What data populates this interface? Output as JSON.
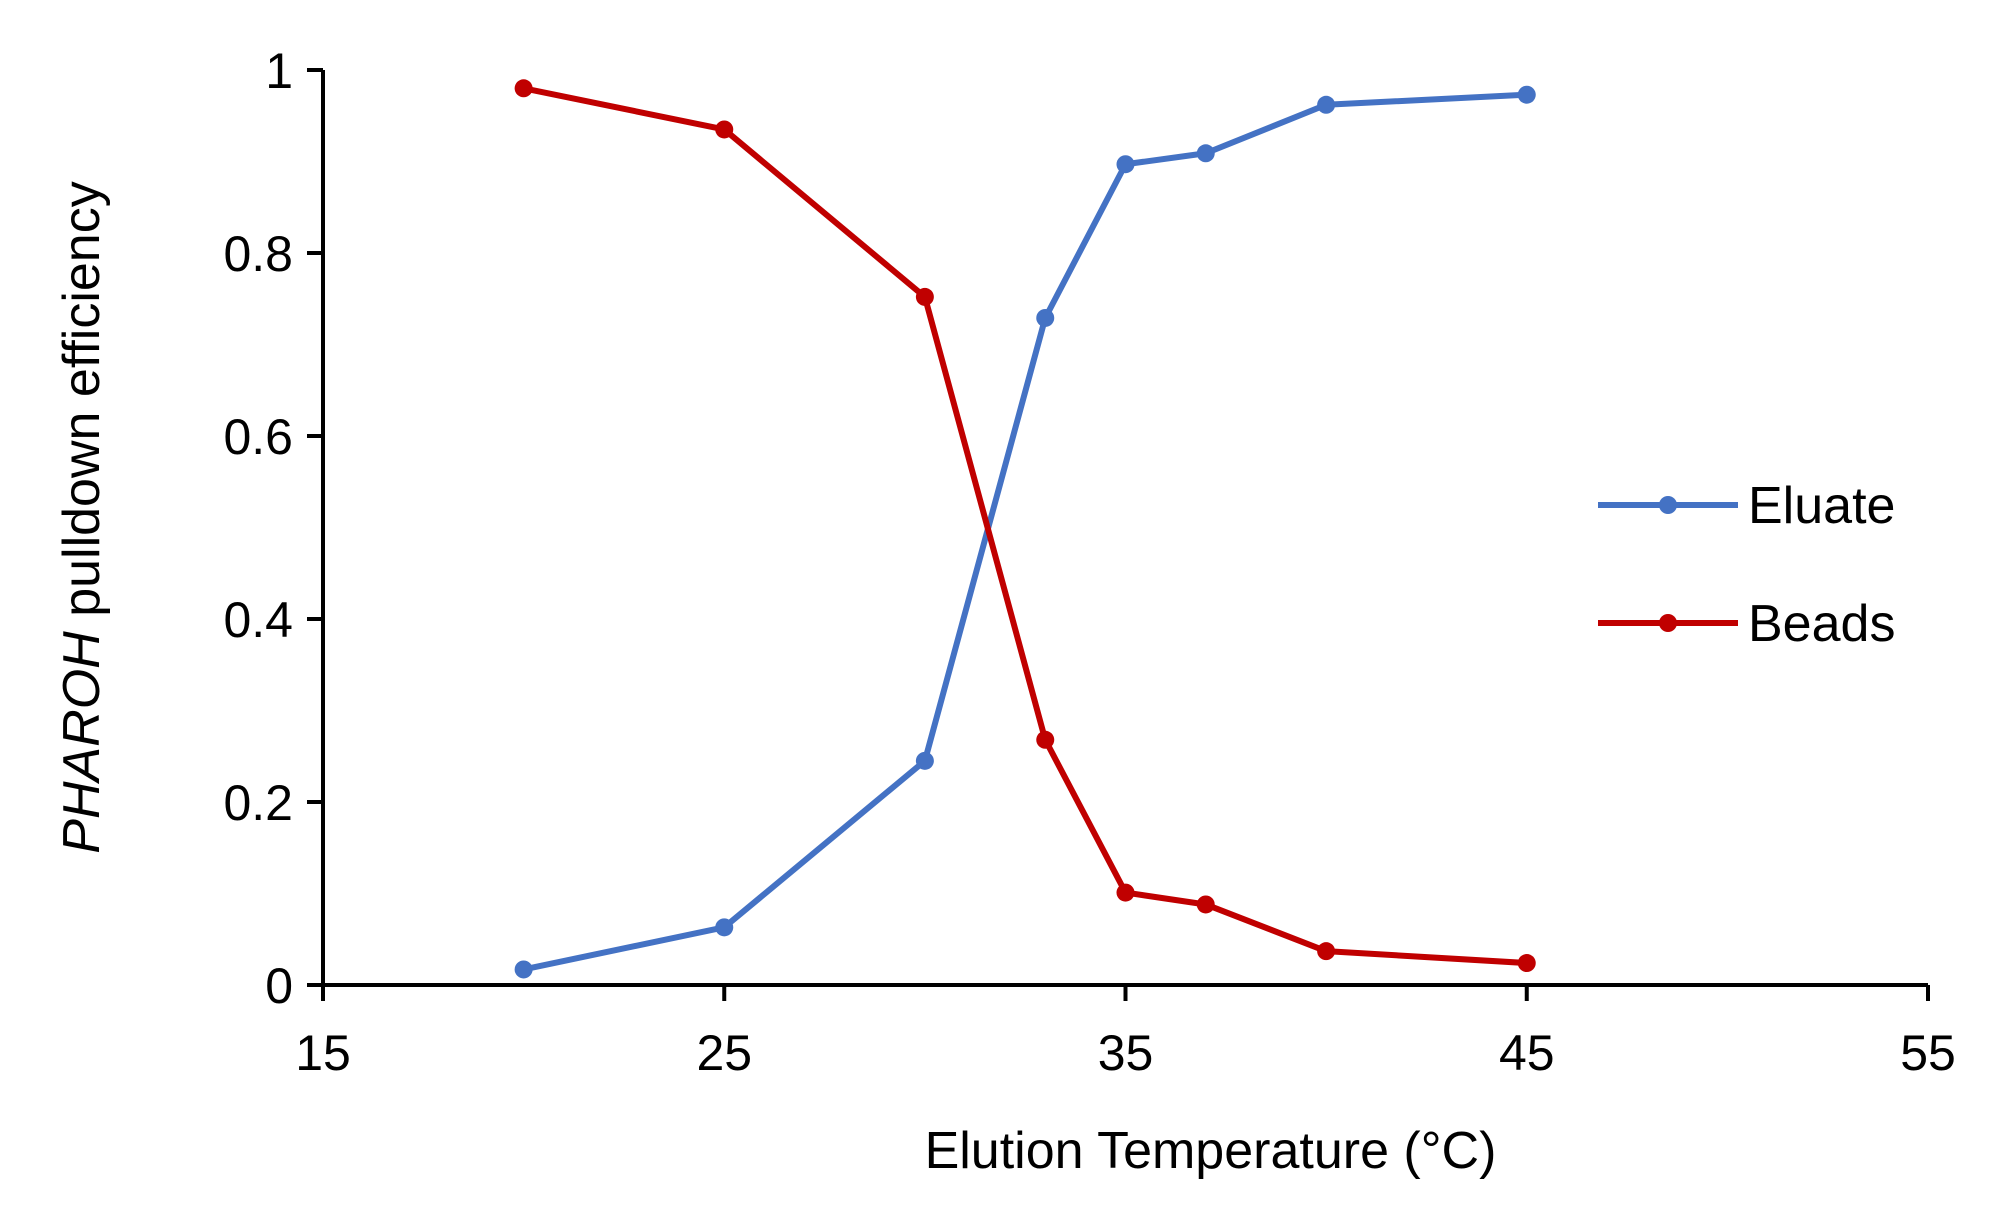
{
  "chart_data": {
    "type": "line",
    "title": "",
    "xlabel": "Elution Temperature (°C)",
    "ylabel_italic": "PHAROH",
    "ylabel_rest": " pulldown efficiency",
    "xlim": [
      15,
      55
    ],
    "ylim": [
      0,
      1
    ],
    "xticks": [
      15,
      25,
      35,
      45,
      55
    ],
    "xtick_labels": [
      "15",
      "25",
      "35",
      "45",
      "55"
    ],
    "yticks": [
      0,
      0.2,
      0.4,
      0.6,
      0.8,
      1
    ],
    "ytick_labels": [
      "0",
      "0.2",
      "0.4",
      "0.6",
      "0.8",
      "1"
    ],
    "grid": false,
    "legend_position": "right",
    "series": [
      {
        "name": "Eluate",
        "color": "#4472C4",
        "x": [
          20,
          25,
          30,
          33,
          35,
          37,
          40,
          45
        ],
        "y": [
          0.017,
          0.063,
          0.245,
          0.729,
          0.897,
          0.909,
          0.962,
          0.973
        ]
      },
      {
        "name": "Beads",
        "color": "#C00000",
        "x": [
          20,
          25,
          30,
          33,
          35,
          37,
          40,
          45
        ],
        "y": [
          0.98,
          0.935,
          0.752,
          0.268,
          0.101,
          0.088,
          0.037,
          0.024
        ]
      }
    ]
  }
}
